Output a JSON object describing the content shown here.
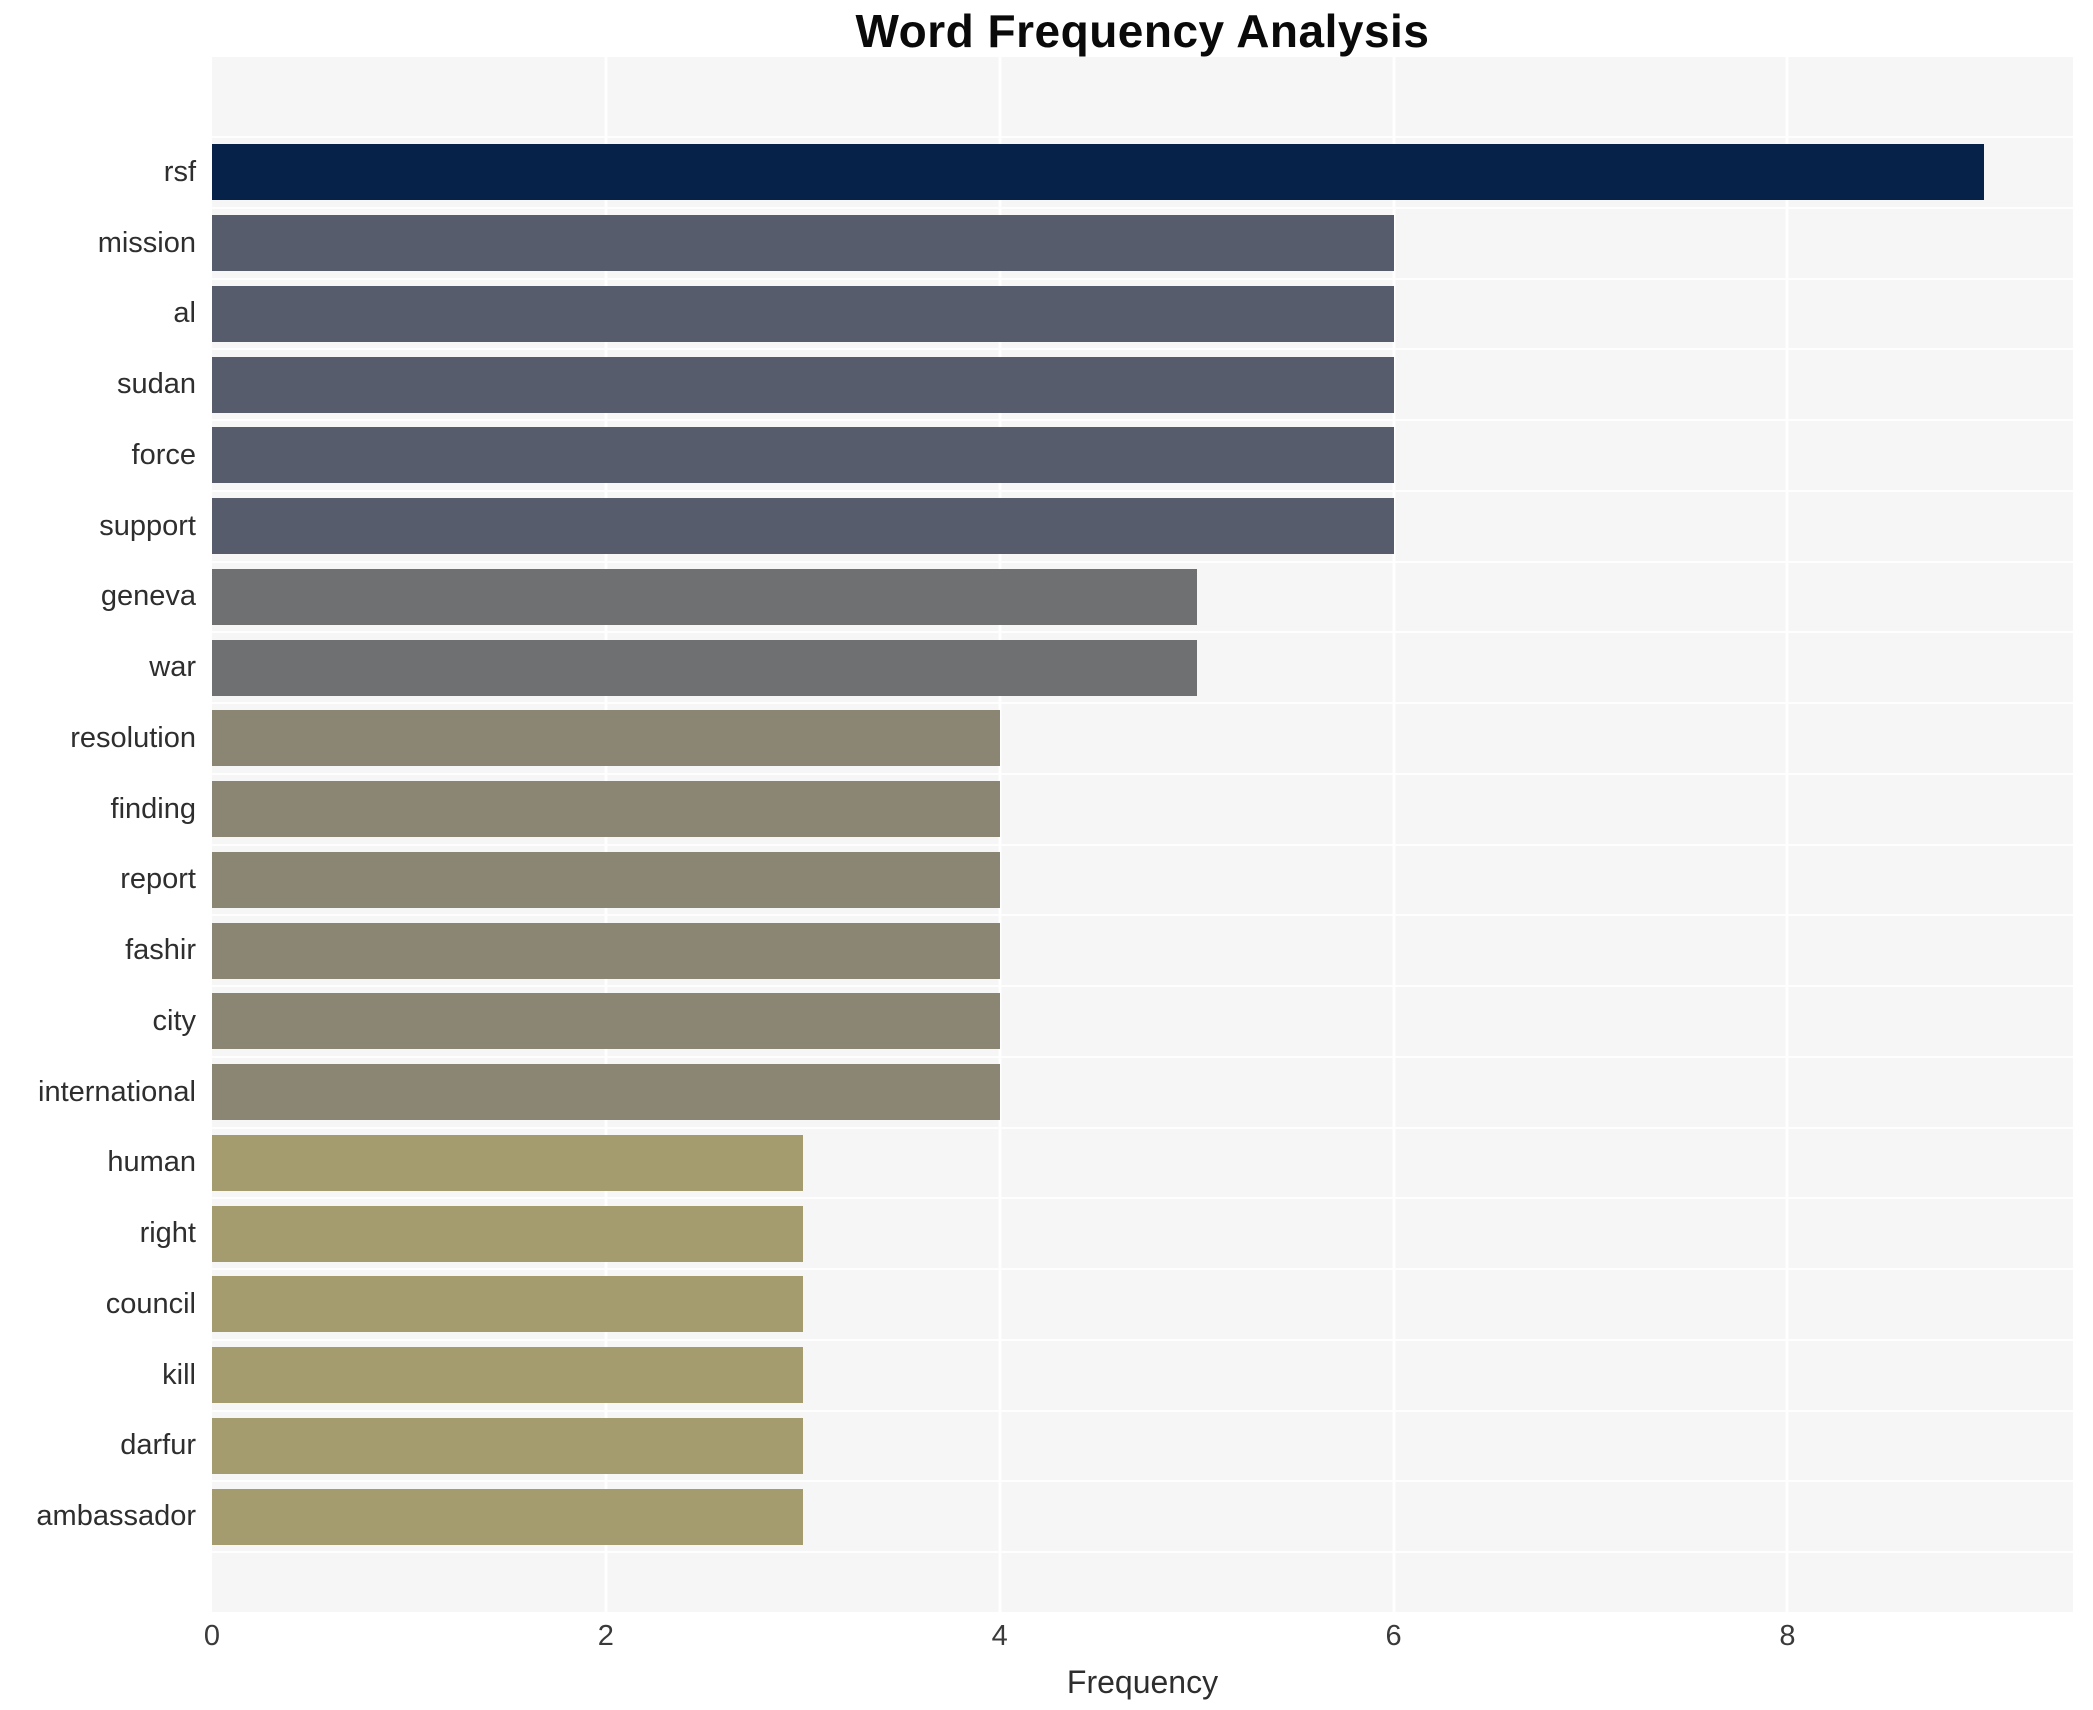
{
  "title": "Word Frequency Analysis",
  "xlabel": "Frequency",
  "colors": {
    "page_bg": "#ffffff",
    "plot_bg": "#f6f6f7",
    "gridline": "#ffffff",
    "label_text": "#2e2e2e",
    "tick_text": "#3a3a3a",
    "title_text": "#0a0a0a",
    "value_9": "#062248",
    "value_6": "#565c6c",
    "value_5": "#6f7072",
    "value_4": "#8a8673",
    "value_3": "#a49b6e"
  },
  "chart_data": {
    "type": "bar",
    "orientation": "horizontal",
    "title": "Word Frequency Analysis",
    "xlabel": "Frequency",
    "ylabel": "",
    "categories": [
      "rsf",
      "mission",
      "al",
      "sudan",
      "force",
      "support",
      "geneva",
      "war",
      "resolution",
      "finding",
      "report",
      "fashir",
      "city",
      "international",
      "human",
      "right",
      "council",
      "kill",
      "darfur",
      "ambassador"
    ],
    "values": [
      9,
      6,
      6,
      6,
      6,
      6,
      5,
      5,
      4,
      4,
      4,
      4,
      4,
      4,
      3,
      3,
      3,
      3,
      3,
      3
    ],
    "bar_colors": [
      "#062248",
      "#565c6c",
      "#565c6c",
      "#565c6c",
      "#565c6c",
      "#565c6c",
      "#6f7072",
      "#6f7072",
      "#8a8673",
      "#8a8673",
      "#8a8673",
      "#8a8673",
      "#8a8673",
      "#8a8673",
      "#a49b6e",
      "#a49b6e",
      "#a49b6e",
      "#a49b6e",
      "#a49b6e",
      "#a49b6e"
    ],
    "xticks": [
      0,
      2,
      4,
      6,
      8
    ],
    "xlim": [
      0,
      9.45
    ],
    "grid": "vertical white gridlines on light gray plot background, legend off"
  }
}
